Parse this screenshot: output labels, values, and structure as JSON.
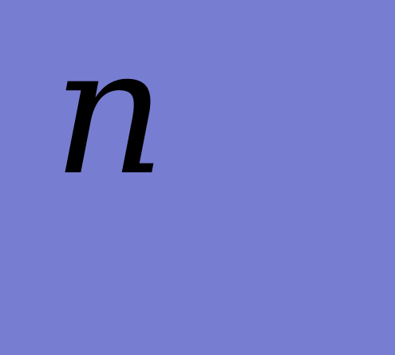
{
  "background_color": "#777dd0",
  "text_color": "#000000",
  "symbol": "n"
}
